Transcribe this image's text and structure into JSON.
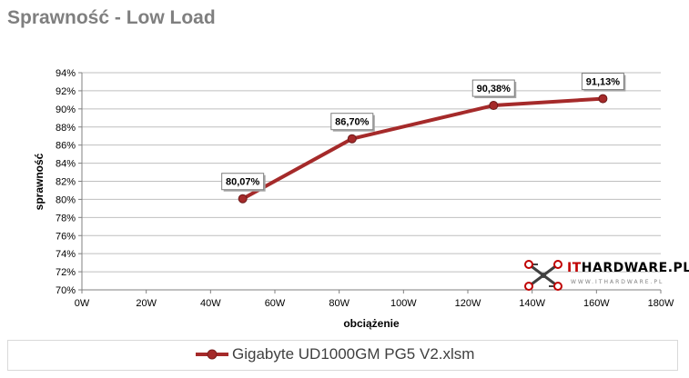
{
  "chart_data": {
    "type": "line",
    "title": "Sprawność - Low Load",
    "xlabel": "obciążenie",
    "ylabel": "sprawność",
    "xlim": [
      0,
      180
    ],
    "ylim": [
      70,
      94
    ],
    "x_ticks": [
      "0W",
      "20W",
      "40W",
      "60W",
      "80W",
      "100W",
      "120W",
      "140W",
      "160W",
      "180W"
    ],
    "x_tick_values": [
      0,
      20,
      40,
      60,
      80,
      100,
      120,
      140,
      160,
      180
    ],
    "y_ticks": [
      "70%",
      "72%",
      "74%",
      "76%",
      "78%",
      "80%",
      "82%",
      "84%",
      "86%",
      "88%",
      "90%",
      "92%",
      "94%"
    ],
    "y_tick_values": [
      70,
      72,
      74,
      76,
      78,
      80,
      82,
      84,
      86,
      88,
      90,
      92,
      94
    ],
    "grid": true,
    "legend_position": "bottom",
    "series": [
      {
        "name": "Gigabyte UD1000GM PG5 V2.xlsm",
        "color": "#a52a2a",
        "x": [
          50,
          84,
          128,
          162
        ],
        "y": [
          80.07,
          86.7,
          90.38,
          91.13
        ],
        "labels": [
          "80,07%",
          "86,70%",
          "90,38%",
          "91,13%"
        ]
      }
    ]
  },
  "logo": {
    "text_it": "IT",
    "text_rest": "HARDWARE.PL",
    "subtext": "WWW.ITHARDWARE.PL",
    "icon": "circuit-x-icon",
    "color_it": "#c00000",
    "color_rest": "#000000"
  }
}
